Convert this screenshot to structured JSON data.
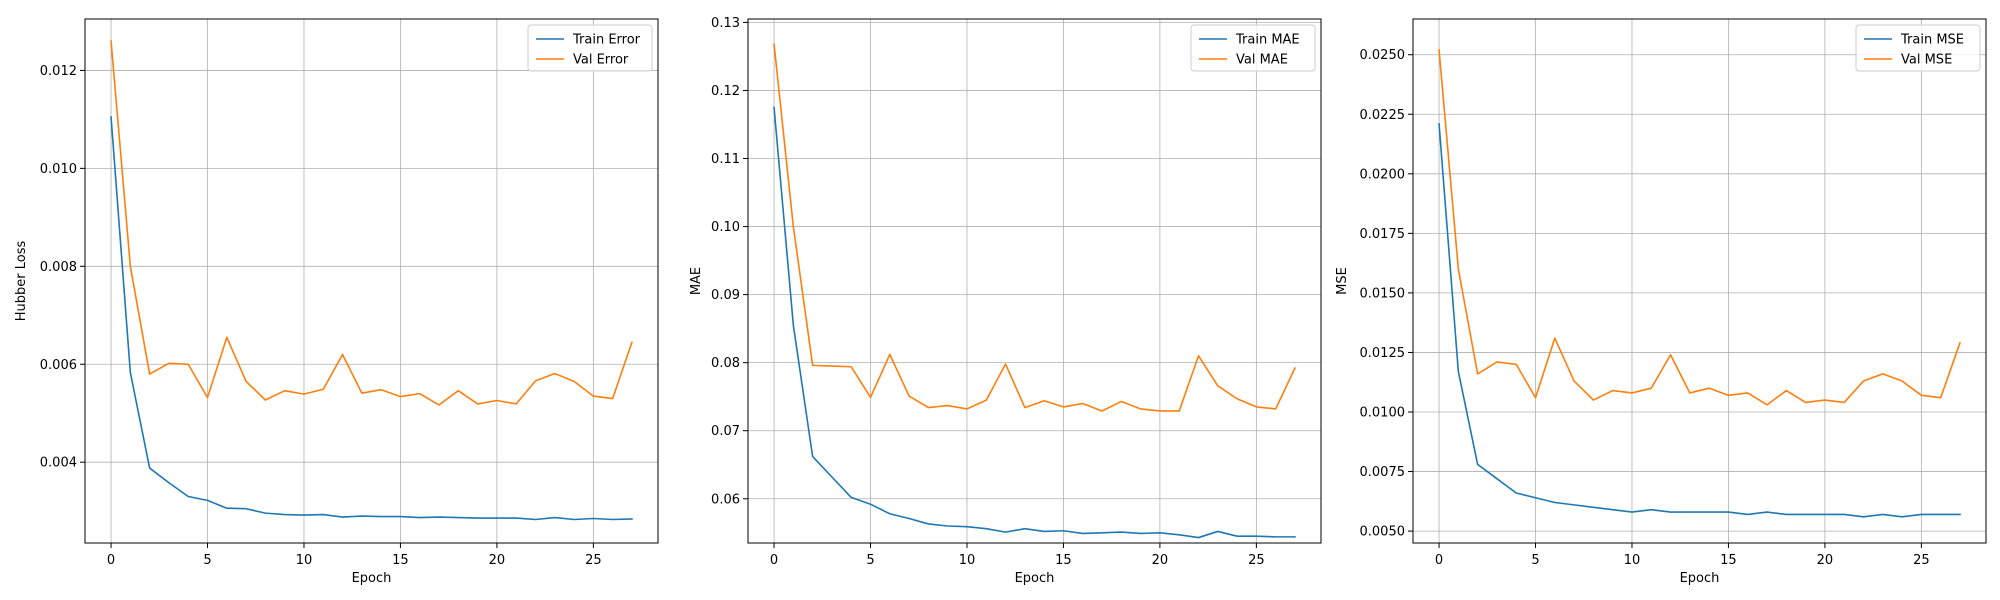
{
  "colors": {
    "train": "#1f77b4",
    "val": "#ff7f0e"
  },
  "chart_data": [
    {
      "type": "line",
      "xlabel": "Epoch",
      "ylabel": "Hubber Loss",
      "xlim": [
        -1.35,
        28.35
      ],
      "ylim": [
        0.00235,
        0.01305
      ],
      "xticks": [
        0,
        5,
        10,
        15,
        20,
        25
      ],
      "xtick_labels": [
        "0",
        "5",
        "10",
        "15",
        "20",
        "25"
      ],
      "yticks": [
        0.004,
        0.006,
        0.008,
        0.01,
        0.012
      ],
      "ytick_labels": [
        "0.004",
        "0.006",
        "0.008",
        "0.010",
        "0.012"
      ],
      "grid": true,
      "legend": "top-right",
      "x": [
        0,
        1,
        2,
        3,
        4,
        5,
        6,
        7,
        8,
        9,
        10,
        11,
        12,
        13,
        14,
        15,
        16,
        17,
        18,
        19,
        20,
        21,
        22,
        23,
        24,
        25,
        26,
        27
      ],
      "series": [
        {
          "name": "Train Error",
          "color": "#1f77b4",
          "values": [
            0.01105,
            0.00583,
            0.00388,
            0.00358,
            0.0033,
            0.00322,
            0.00306,
            0.00305,
            0.00296,
            0.00293,
            0.00292,
            0.00293,
            0.00288,
            0.0029,
            0.00289,
            0.00289,
            0.00287,
            0.00288,
            0.00287,
            0.00286,
            0.00286,
            0.00286,
            0.00283,
            0.00287,
            0.00283,
            0.00285,
            0.00283,
            0.00284
          ]
        },
        {
          "name": "Val Error",
          "color": "#ff7f0e",
          "values": [
            0.0126,
            0.008,
            0.0058,
            0.00602,
            0.006,
            0.00532,
            0.00655,
            0.00565,
            0.00527,
            0.00546,
            0.00539,
            0.00549,
            0.0062,
            0.00541,
            0.00548,
            0.00534,
            0.0054,
            0.00517,
            0.00546,
            0.00519,
            0.00526,
            0.00519,
            0.00566,
            0.00581,
            0.00565,
            0.00535,
            0.0053,
            0.00645
          ]
        }
      ]
    },
    {
      "type": "line",
      "xlabel": "Epoch",
      "ylabel": "MAE",
      "xlim": [
        -1.35,
        28.35
      ],
      "ylim": [
        0.0535,
        0.1305
      ],
      "xticks": [
        0,
        5,
        10,
        15,
        20,
        25
      ],
      "xtick_labels": [
        "0",
        "5",
        "10",
        "15",
        "20",
        "25"
      ],
      "yticks": [
        0.06,
        0.07,
        0.08,
        0.09,
        0.1,
        0.11,
        0.12,
        0.13
      ],
      "ytick_labels": [
        "0.06",
        "0.07",
        "0.08",
        "0.09",
        "0.10",
        "0.11",
        "0.12",
        "0.13"
      ],
      "grid": true,
      "legend": "top-right",
      "x": [
        0,
        1,
        2,
        3,
        4,
        5,
        6,
        7,
        8,
        9,
        10,
        11,
        12,
        13,
        14,
        15,
        16,
        17,
        18,
        19,
        20,
        21,
        22,
        23,
        24,
        25,
        26,
        27
      ],
      "series": [
        {
          "name": "Train MAE",
          "color": "#1f77b4",
          "values": [
            0.1175,
            0.0855,
            0.0662,
            0.0632,
            0.0602,
            0.0592,
            0.0578,
            0.0571,
            0.0563,
            0.056,
            0.0559,
            0.0556,
            0.0551,
            0.0556,
            0.0552,
            0.0553,
            0.0549,
            0.055,
            0.0551,
            0.0549,
            0.055,
            0.0547,
            0.0543,
            0.0552,
            0.0545,
            0.0545,
            0.0544,
            0.0544
          ]
        },
        {
          "name": "Val MAE",
          "color": "#ff7f0e",
          "values": [
            0.1268,
            0.1,
            0.0796,
            0.0795,
            0.0794,
            0.0749,
            0.0812,
            0.0751,
            0.0734,
            0.0737,
            0.0732,
            0.0745,
            0.0798,
            0.0734,
            0.0744,
            0.0735,
            0.074,
            0.0729,
            0.0743,
            0.0732,
            0.0729,
            0.0729,
            0.081,
            0.0766,
            0.0747,
            0.0735,
            0.0732,
            0.0792
          ]
        }
      ]
    },
    {
      "type": "line",
      "xlabel": "Epoch",
      "ylabel": "MSE",
      "xlim": [
        -1.35,
        28.35
      ],
      "ylim": [
        0.0045,
        0.0265
      ],
      "xticks": [
        0,
        5,
        10,
        15,
        20,
        25
      ],
      "xtick_labels": [
        "0",
        "5",
        "10",
        "15",
        "20",
        "25"
      ],
      "yticks": [
        0.005,
        0.0075,
        0.01,
        0.0125,
        0.015,
        0.0175,
        0.02,
        0.0225,
        0.025
      ],
      "ytick_labels": [
        "0.0050",
        "0.0075",
        "0.0100",
        "0.0125",
        "0.0150",
        "0.0175",
        "0.0200",
        "0.0225",
        "0.0250"
      ],
      "grid": true,
      "legend": "top-right",
      "x": [
        0,
        1,
        2,
        3,
        4,
        5,
        6,
        7,
        8,
        9,
        10,
        11,
        12,
        13,
        14,
        15,
        16,
        17,
        18,
        19,
        20,
        21,
        22,
        23,
        24,
        25,
        26,
        27
      ],
      "series": [
        {
          "name": "Train MSE",
          "color": "#1f77b4",
          "values": [
            0.0221,
            0.0117,
            0.0078,
            0.0072,
            0.0066,
            0.0064,
            0.0062,
            0.0061,
            0.006,
            0.0059,
            0.0058,
            0.0059,
            0.0058,
            0.0058,
            0.0058,
            0.0058,
            0.0057,
            0.0058,
            0.0057,
            0.0057,
            0.0057,
            0.0057,
            0.0056,
            0.0057,
            0.0056,
            0.0057,
            0.0057,
            0.0057
          ]
        },
        {
          "name": "Val MSE",
          "color": "#ff7f0e",
          "values": [
            0.0252,
            0.016,
            0.0116,
            0.0121,
            0.012,
            0.0106,
            0.0131,
            0.0113,
            0.0105,
            0.0109,
            0.0108,
            0.011,
            0.0124,
            0.0108,
            0.011,
            0.0107,
            0.0108,
            0.0103,
            0.0109,
            0.0104,
            0.0105,
            0.0104,
            0.0113,
            0.0116,
            0.0113,
            0.0107,
            0.0106,
            0.0129
          ]
        }
      ]
    }
  ]
}
